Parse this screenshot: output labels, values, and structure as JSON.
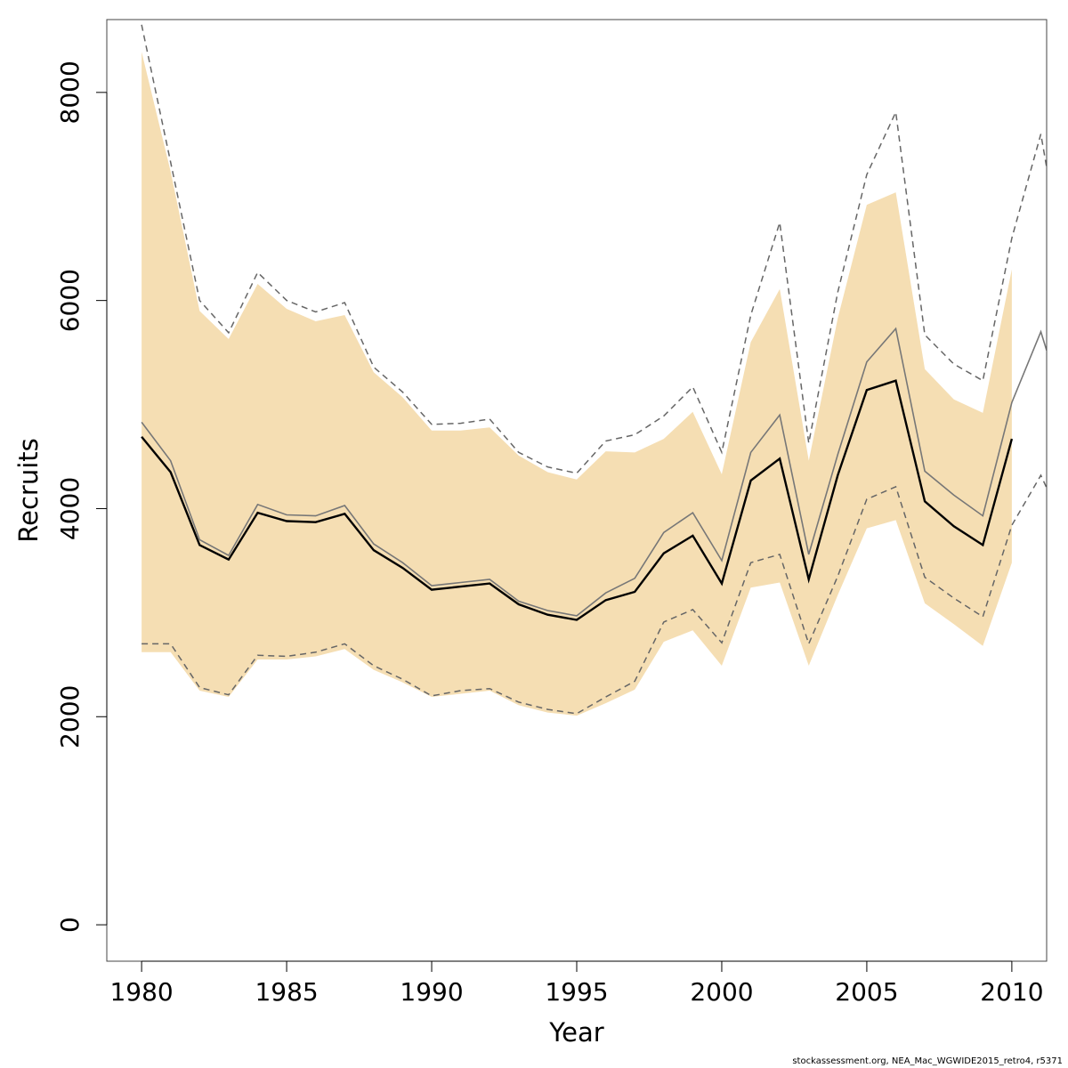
{
  "chart_data": {
    "type": "area",
    "xlabel": "Year",
    "ylabel": "Recruits",
    "xlim": [
      1978.8,
      2011.2
    ],
    "ylim": [
      -350,
      8700
    ],
    "x_ticks": [
      1980,
      1985,
      1990,
      1995,
      2000,
      2005,
      2010
    ],
    "x_tick_labels": [
      "1980",
      "1985",
      "1990",
      "1995",
      "2000",
      "2005",
      "2010"
    ],
    "y_ticks": [
      0,
      2000,
      4000,
      6000,
      8000
    ],
    "y_tick_labels": [
      "0",
      "2000",
      "4000",
      "6000",
      "8000"
    ],
    "grid": false,
    "colors": {
      "band": "#f5deb3",
      "main_line": "#000000",
      "retro_line": "#777777",
      "retro_ci": "#666666"
    },
    "band": {
      "x": [
        1980,
        1981,
        1982,
        1983,
        1984,
        1985,
        1986,
        1987,
        1988,
        1989,
        1990,
        1991,
        1992,
        1993,
        1994,
        1995,
        1996,
        1997,
        1998,
        1999,
        2000,
        2001,
        2002,
        2003,
        2004,
        2005,
        2006,
        2007,
        2008,
        2009,
        2010
      ],
      "lower": [
        2620,
        2620,
        2250,
        2190,
        2550,
        2550,
        2580,
        2650,
        2450,
        2330,
        2190,
        2220,
        2250,
        2110,
        2040,
        2010,
        2130,
        2260,
        2720,
        2830,
        2490,
        3240,
        3290,
        2490,
        3170,
        3810,
        3890,
        3090,
        2890,
        2680,
        3480
      ],
      "upper": [
        8390,
        7240,
        5900,
        5630,
        6160,
        5920,
        5800,
        5860,
        5310,
        5070,
        4750,
        4750,
        4780,
        4510,
        4350,
        4280,
        4550,
        4540,
        4670,
        4930,
        4330,
        5600,
        6110,
        4460,
        5830,
        6920,
        7040,
        5340,
        5050,
        4920,
        6300
      ]
    },
    "series": [
      {
        "x": [
          1980,
          1981,
          1982,
          1983,
          1984,
          1985,
          1986,
          1987,
          1988,
          1989,
          1990,
          1991,
          1992,
          1993,
          1994,
          1995,
          1996,
          1997,
          1998,
          1999,
          2000,
          2001,
          2002,
          2003,
          2004,
          2005,
          2006,
          2007,
          2008,
          2009,
          2010
        ],
        "values": [
          4690,
          4350,
          3650,
          3510,
          3960,
          3880,
          3870,
          3950,
          3600,
          3430,
          3220,
          3250,
          3280,
          3080,
          2980,
          2930,
          3120,
          3200,
          3570,
          3740,
          3280,
          4270,
          4480,
          3320,
          4320,
          5140,
          5230,
          4070,
          3830,
          3650,
          4670
        ]
      },
      {
        "x": [
          1980,
          1981,
          1982,
          1983,
          1984,
          1985,
          1986,
          1987,
          1988,
          1989,
          1990,
          1991,
          1992,
          1993,
          1994,
          1995,
          1996,
          1997,
          1998,
          1999,
          2000,
          2001,
          2002,
          2003,
          2004,
          2005,
          2006,
          2007,
          2008,
          2009,
          2010,
          2011,
          2011.2
        ],
        "values": [
          4830,
          4460,
          3700,
          3550,
          4040,
          3940,
          3930,
          4030,
          3660,
          3480,
          3260,
          3290,
          3320,
          3110,
          3020,
          2970,
          3190,
          3330,
          3770,
          3960,
          3500,
          4540,
          4900,
          3560,
          4520,
          5410,
          5730,
          4360,
          4130,
          3930,
          5020,
          5700,
          5520
        ]
      },
      {
        "x": [
          1980,
          1981,
          1982,
          1983,
          1984,
          1985,
          1986,
          1987,
          1988,
          1989,
          1990,
          1991,
          1992,
          1993,
          1994,
          1995,
          1996,
          1997,
          1998,
          1999,
          2000,
          2001,
          2002,
          2003,
          2004,
          2005,
          2006,
          2007,
          2008,
          2009,
          2010,
          2011,
          2011.2
        ],
        "values": [
          8650,
          7330,
          6000,
          5690,
          6270,
          6000,
          5890,
          5980,
          5360,
          5120,
          4810,
          4820,
          4860,
          4540,
          4400,
          4340,
          4650,
          4710,
          4890,
          5170,
          4540,
          5860,
          6750,
          4630,
          6080,
          7210,
          7810,
          5670,
          5390,
          5230,
          6600,
          7600,
          7280
        ]
      },
      {
        "x": [
          1980,
          1981,
          1982,
          1983,
          1984,
          1985,
          1986,
          1987,
          1988,
          1989,
          1990,
          1991,
          1992,
          1993,
          1994,
          1995,
          1996,
          1997,
          1998,
          1999,
          2000,
          2001,
          2002,
          2003,
          2004,
          2005,
          2006,
          2007,
          2008,
          2009,
          2010,
          2011,
          2011.2
        ],
        "values": [
          2700,
          2700,
          2280,
          2210,
          2590,
          2580,
          2620,
          2700,
          2490,
          2360,
          2200,
          2250,
          2270,
          2140,
          2070,
          2030,
          2190,
          2340,
          2910,
          3030,
          2710,
          3480,
          3560,
          2700,
          3350,
          4090,
          4210,
          3340,
          3140,
          2960,
          3840,
          4320,
          4200
        ]
      }
    ]
  },
  "footnote": "stockassessment.org, NEA_Mac_WGWIDE2015_retro4, r5371"
}
